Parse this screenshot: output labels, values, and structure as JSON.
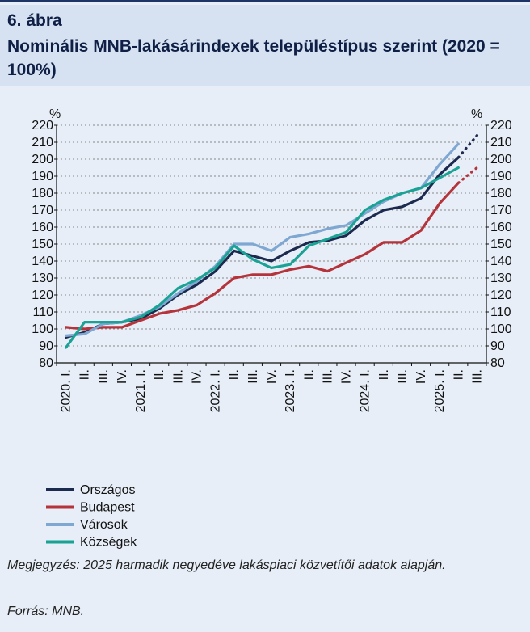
{
  "figure": {
    "number": "6. ábra",
    "title": "Nominális MNB-lakásárindexek településtípus szerint (2020 = 100%)",
    "note": "Megjegyzés: 2025 harmadik negyedéve lakáspiaci közvetítői adatok alapján.",
    "source": "Forrás: MNB."
  },
  "chart_data": {
    "type": "line",
    "title": "Nominális MNB-lakásárindexek településtípus szerint (2020 = 100%)",
    "ylabel_left": "%",
    "ylabel_right": "%",
    "ylim": [
      80,
      220
    ],
    "yticks": [
      80,
      90,
      100,
      110,
      120,
      130,
      140,
      150,
      160,
      170,
      180,
      190,
      200,
      210,
      220
    ],
    "grid": true,
    "categories": [
      "2020. I.",
      "II.",
      "III.",
      "IV.",
      "2021. I.",
      "II.",
      "III.",
      "IV.",
      "2022. I.",
      "II.",
      "III.",
      "IV.",
      "2023. I.",
      "II.",
      "III.",
      "IV.",
      "2024. I.",
      "II.",
      "III.",
      "IV.",
      "2025. I.",
      "II.",
      "III."
    ],
    "series": [
      {
        "name": "Országos",
        "color": "#1b2a4e",
        "values": [
          95,
          98,
          103,
          104,
          106,
          112,
          120,
          126,
          134,
          146,
          143,
          140,
          146,
          151,
          152,
          155,
          164,
          170,
          172,
          177,
          191,
          201,
          214
        ],
        "projected_from_index": 21
      },
      {
        "name": "Budapest",
        "color": "#b5343b",
        "values": [
          101,
          100,
          101,
          101,
          105,
          109,
          111,
          114,
          121,
          130,
          132,
          132,
          135,
          137,
          134,
          139,
          144,
          151,
          151,
          158,
          174,
          186,
          195
        ],
        "projected_from_index": 21
      },
      {
        "name": "Városok",
        "color": "#7ea7d2",
        "values": [
          96,
          97,
          103,
          104,
          108,
          113,
          121,
          128,
          137,
          150,
          150,
          146,
          154,
          156,
          159,
          161,
          168,
          175,
          180,
          183,
          197,
          209,
          null
        ],
        "projected_from_index": null
      },
      {
        "name": "Községek",
        "color": "#1aa295",
        "values": [
          89,
          104,
          104,
          104,
          107,
          114,
          124,
          129,
          136,
          149,
          141,
          136,
          138,
          149,
          153,
          157,
          170,
          176,
          180,
          183,
          189,
          195,
          null
        ],
        "projected_from_index": null
      }
    ]
  }
}
